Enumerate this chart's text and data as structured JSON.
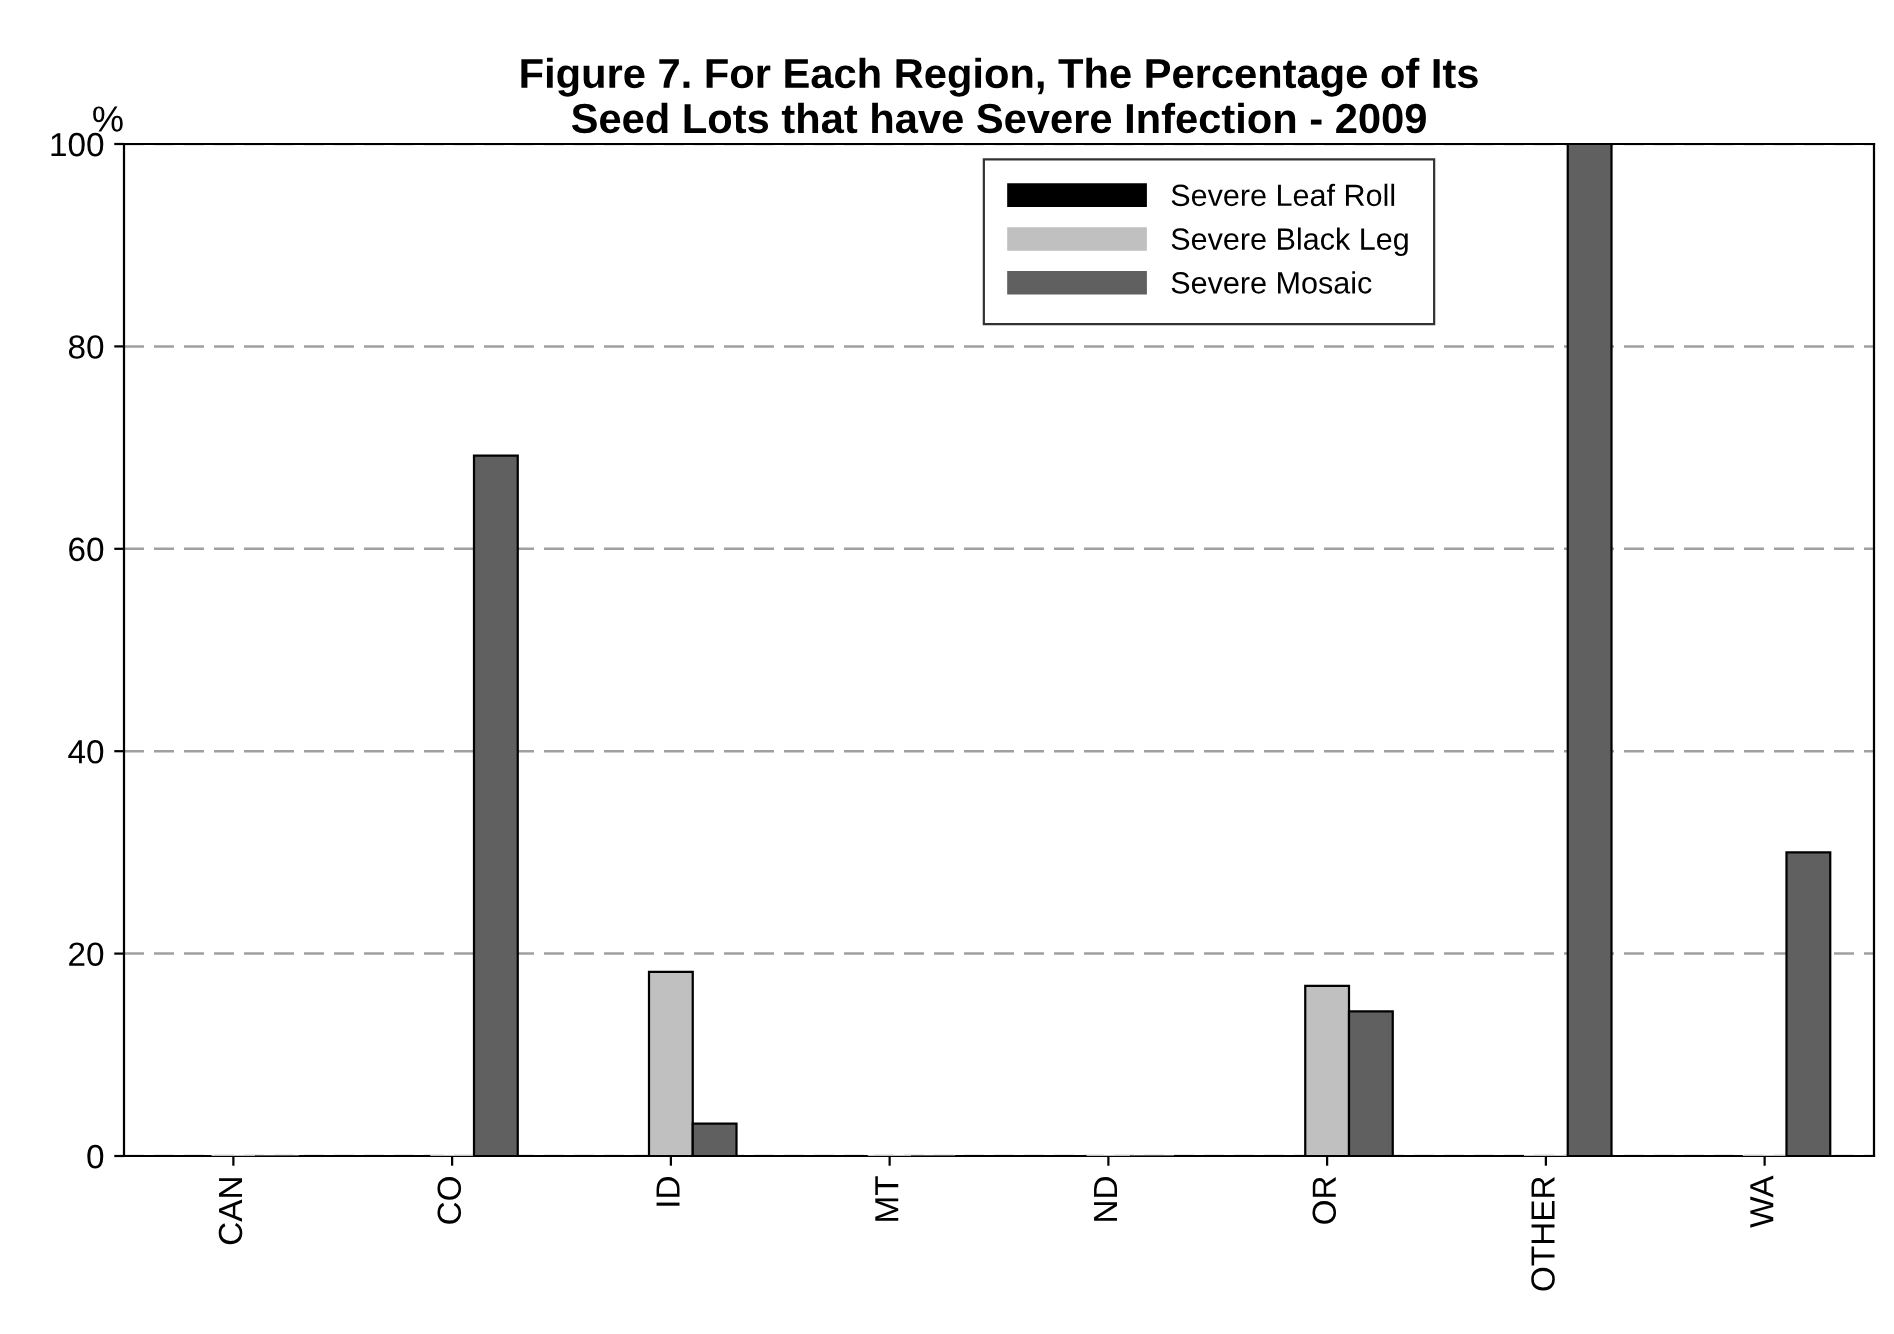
{
  "chart_data": {
    "type": "bar",
    "title": "Figure 7. For Each Region, The Percentage of Its\nSeed Lots that have Severe Infection - 2009",
    "ylabel": "%",
    "categories": [
      "CAN",
      "CO",
      "ID",
      "MT",
      "ND",
      "OR",
      "OTHER",
      "WA"
    ],
    "series": [
      {
        "name": "Severe Leaf Roll",
        "color": "#000000",
        "values": [
          0,
          0,
          0,
          0,
          0,
          0,
          0,
          0
        ]
      },
      {
        "name": "Severe Black Leg",
        "color": "#c0c0c0",
        "values": [
          0,
          0,
          18.2,
          0,
          0,
          16.8,
          0,
          0
        ]
      },
      {
        "name": "Severe Mosaic",
        "color": "#606060",
        "values": [
          0,
          69.2,
          3.2,
          0,
          0,
          14.3,
          100,
          30
        ]
      }
    ],
    "ylim": [
      0,
      100
    ],
    "yticks": [
      0,
      20,
      40,
      60,
      80,
      100
    ],
    "grid": "y",
    "legend": "top"
  }
}
